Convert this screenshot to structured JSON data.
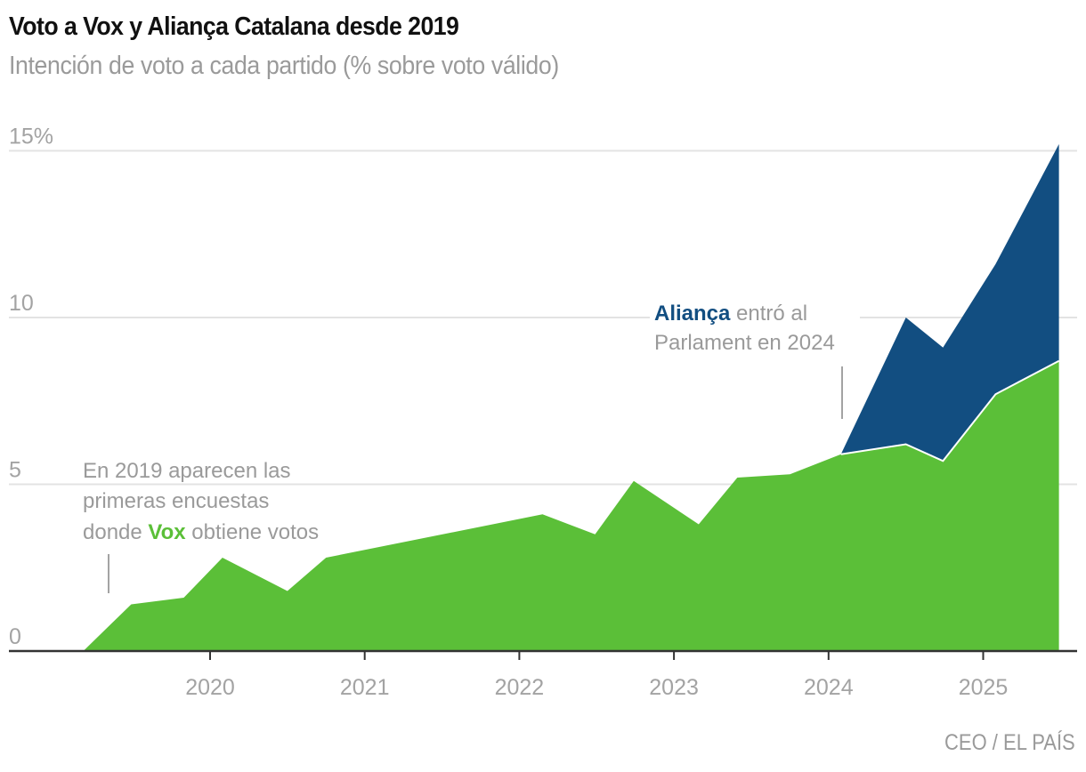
{
  "header": {
    "title": "Voto a Vox y Aliança Catalana desde 2019",
    "subtitle": "Intención de voto a cada partido (% sobre voto válido)"
  },
  "footer": {
    "source": "CEO / EL PAÍS"
  },
  "colors": {
    "vox": "#5bbf38",
    "alianca": "#124e81",
    "grid": "#e3e3e3",
    "axis": "#333333",
    "muted_text": "#9a9a9a"
  },
  "annotations": {
    "vox": {
      "line1": "En 2019 aparecen las",
      "line2": "primeras encuestas",
      "line3_prefix": "donde ",
      "line3_bold": "Vox",
      "line3_suffix": " obtiene votos"
    },
    "alianca": {
      "line1_bold": "Aliança",
      "line1_suffix": " entró al",
      "line2": "Parlament en 2024"
    }
  },
  "chart_data": {
    "type": "area",
    "stacked": true,
    "title": "Voto a Vox y Aliança Catalana desde 2019",
    "subtitle": "Intención de voto a cada partido (% sobre voto válido)",
    "xlabel": "",
    "ylabel": "",
    "xlim": [
      2018.65,
      2025.55
    ],
    "ylim": [
      0,
      15
    ],
    "grid": true,
    "legend": "inline annotations",
    "y_ticks": [
      {
        "value": 0,
        "label": "0"
      },
      {
        "value": 5,
        "label": "5"
      },
      {
        "value": 10,
        "label": "10"
      },
      {
        "value": 15,
        "label": "15%"
      }
    ],
    "x_ticks": [
      {
        "value": 2020,
        "label": "2020"
      },
      {
        "value": 2021,
        "label": "2021"
      },
      {
        "value": 2022,
        "label": "2022"
      },
      {
        "value": 2023,
        "label": "2023"
      },
      {
        "value": 2024,
        "label": "2024"
      },
      {
        "value": 2025,
        "label": "2025"
      }
    ],
    "series": [
      {
        "name": "Vox",
        "x": [
          2019.18,
          2019.49,
          2019.83,
          2020.08,
          2020.5,
          2020.75,
          2022.15,
          2022.49,
          2022.74,
          2023.16,
          2023.41,
          2023.75,
          2024.08,
          2024.5,
          2024.74,
          2025.08,
          2025.49
        ],
        "values": [
          0,
          1.4,
          1.6,
          2.8,
          1.8,
          2.8,
          4.1,
          3.5,
          5.1,
          3.8,
          5.2,
          5.3,
          5.9,
          6.2,
          5.7,
          7.7,
          8.7
        ]
      },
      {
        "name": "Aliança Catalana",
        "x": [
          2024.08,
          2024.5,
          2024.74,
          2025.08,
          2025.49
        ],
        "values": [
          0,
          3.8,
          3.4,
          3.9,
          6.5
        ]
      }
    ]
  }
}
